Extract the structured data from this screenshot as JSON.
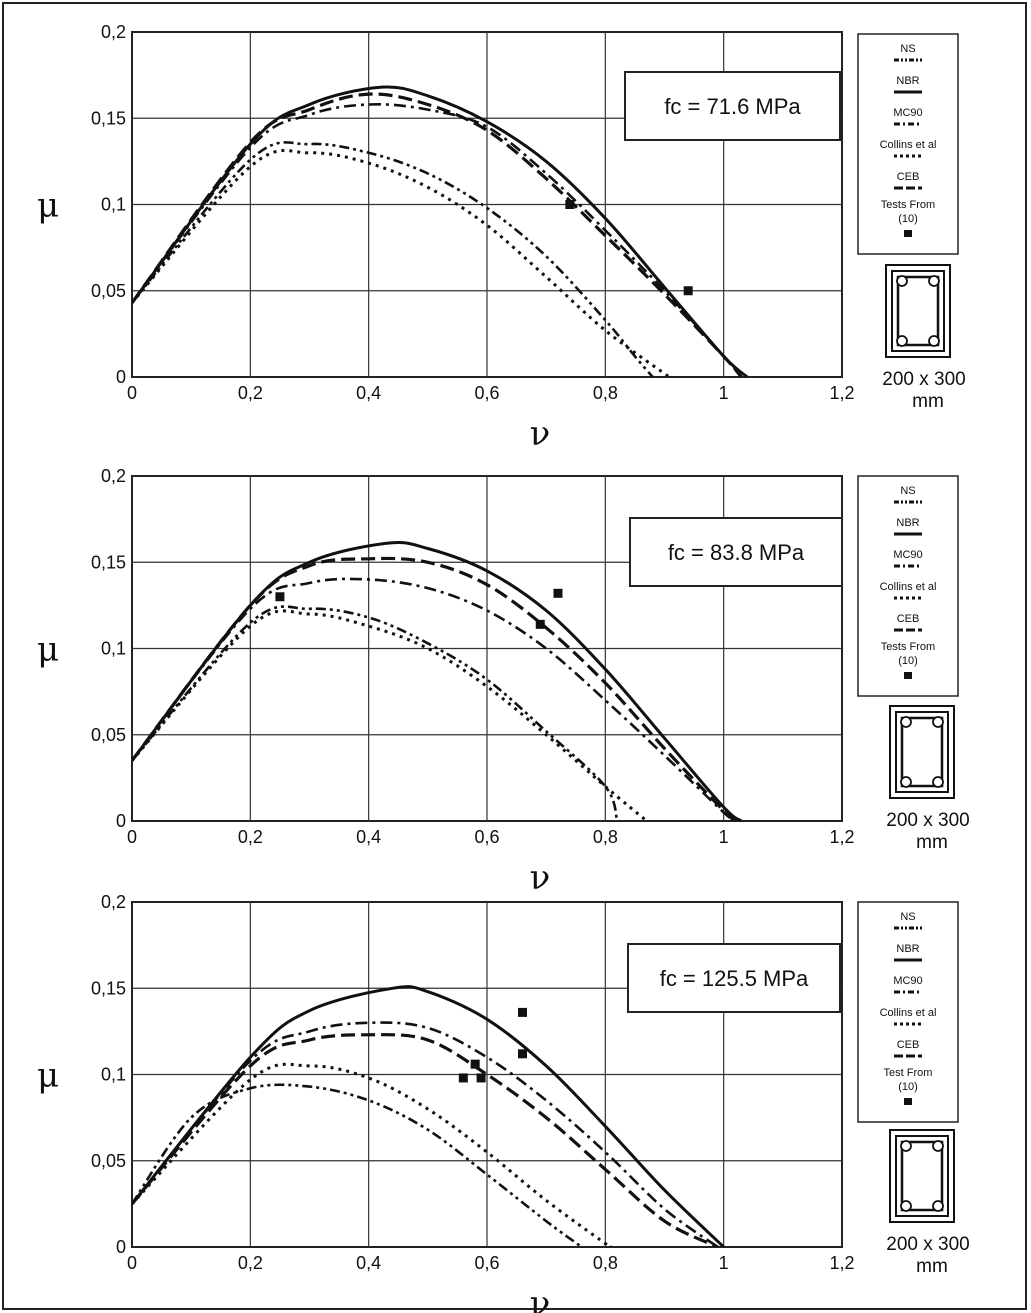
{
  "chart_data": [
    {
      "type": "line",
      "annotation": "fc = 71.6 MPa",
      "xlabel": "ν",
      "ylabel": "μ",
      "xlim": [
        0,
        1.2
      ],
      "ylim": [
        0,
        0.2
      ],
      "x_ticks": [
        "0",
        "0,2",
        "0,4",
        "0,6",
        "0,8",
        "1",
        "1,2"
      ],
      "y_ticks": [
        "0",
        "0,05",
        "0,1",
        "0,15",
        "0,2"
      ],
      "grid": true,
      "legend_placement": "right",
      "legend": [
        "NS",
        "NBR",
        "MC90",
        "Collins et al",
        "CEB",
        "Tests From",
        "(10)"
      ],
      "section_label": [
        "200 x 300",
        "mm"
      ],
      "series": [
        {
          "name": "NS",
          "style": "dash-dot-dot",
          "points": [
            [
              0,
              0.043
            ],
            [
              0.2,
              0.126
            ],
            [
              0.3,
              0.135
            ],
            [
              0.4,
              0.13
            ],
            [
              0.5,
              0.118
            ],
            [
              0.6,
              0.098
            ],
            [
              0.7,
              0.07
            ],
            [
              0.8,
              0.033
            ],
            [
              0.85,
              0.012
            ],
            [
              0.88,
              0
            ]
          ]
        },
        {
          "name": "NBR",
          "style": "solid",
          "points": [
            [
              0,
              0.043
            ],
            [
              0.2,
              0.135
            ],
            [
              0.3,
              0.158
            ],
            [
              0.42,
              0.168
            ],
            [
              0.5,
              0.163
            ],
            [
              0.6,
              0.148
            ],
            [
              0.7,
              0.125
            ],
            [
              0.8,
              0.092
            ],
            [
              0.9,
              0.052
            ],
            [
              1,
              0.012
            ],
            [
              1.04,
              0
            ]
          ]
        },
        {
          "name": "MC90",
          "style": "dash-dot",
          "points": [
            [
              0,
              0.043
            ],
            [
              0.2,
              0.133
            ],
            [
              0.3,
              0.152
            ],
            [
              0.4,
              0.158
            ],
            [
              0.5,
              0.155
            ],
            [
              0.6,
              0.145
            ],
            [
              0.7,
              0.118
            ],
            [
              0.8,
              0.085
            ],
            [
              0.9,
              0.05
            ],
            [
              1,
              0.012
            ],
            [
              1.03,
              0
            ]
          ]
        },
        {
          "name": "Collins et al",
          "style": "dotted",
          "points": [
            [
              0,
              0.043
            ],
            [
              0.2,
              0.122
            ],
            [
              0.3,
              0.13
            ],
            [
              0.4,
              0.124
            ],
            [
              0.5,
              0.11
            ],
            [
              0.6,
              0.088
            ],
            [
              0.7,
              0.058
            ],
            [
              0.8,
              0.027
            ],
            [
              0.9,
              0.002
            ],
            [
              0.91,
              0
            ]
          ]
        },
        {
          "name": "CEB",
          "style": "dashed",
          "points": [
            [
              0,
              0.043
            ],
            [
              0.2,
              0.136
            ],
            [
              0.3,
              0.155
            ],
            [
              0.4,
              0.164
            ],
            [
              0.5,
              0.158
            ],
            [
              0.6,
              0.143
            ],
            [
              0.7,
              0.115
            ],
            [
              0.8,
              0.082
            ],
            [
              0.9,
              0.048
            ],
            [
              1,
              0.012
            ],
            [
              1.03,
              0
            ]
          ]
        }
      ],
      "tests": [
        [
          0.74,
          0.1
        ],
        [
          0.94,
          0.05
        ]
      ]
    },
    {
      "type": "line",
      "annotation": "fc = 83.8 MPa",
      "xlabel": "ν",
      "ylabel": "μ",
      "xlim": [
        0,
        1.2
      ],
      "ylim": [
        0,
        0.2
      ],
      "x_ticks": [
        "0",
        "0,2",
        "0,4",
        "0,6",
        "0,8",
        "1",
        "1,2"
      ],
      "y_ticks": [
        "0",
        "0,05",
        "0,1",
        "0,15",
        "0,2"
      ],
      "grid": true,
      "legend_placement": "right",
      "legend": [
        "NS",
        "NBR",
        "MC90",
        "Collins et al",
        "CEB",
        "Tests From",
        "(10)"
      ],
      "section_label": [
        "200 x 300",
        "mm"
      ],
      "series": [
        {
          "name": "NS",
          "style": "dash-dot-dot",
          "points": [
            [
              0,
              0.035
            ],
            [
              0.2,
              0.115
            ],
            [
              0.3,
              0.123
            ],
            [
              0.4,
              0.118
            ],
            [
              0.5,
              0.103
            ],
            [
              0.6,
              0.082
            ],
            [
              0.7,
              0.052
            ],
            [
              0.8,
              0.02
            ],
            [
              0.82,
              0
            ]
          ]
        },
        {
          "name": "NBR",
          "style": "solid",
          "points": [
            [
              0,
              0.035
            ],
            [
              0.2,
              0.125
            ],
            [
              0.3,
              0.15
            ],
            [
              0.43,
              0.161
            ],
            [
              0.5,
              0.158
            ],
            [
              0.6,
              0.145
            ],
            [
              0.7,
              0.122
            ],
            [
              0.8,
              0.088
            ],
            [
              0.9,
              0.048
            ],
            [
              1,
              0.008
            ],
            [
              1.03,
              0
            ]
          ]
        },
        {
          "name": "MC90",
          "style": "dash-dot",
          "points": [
            [
              0,
              0.035
            ],
            [
              0.2,
              0.123
            ],
            [
              0.3,
              0.138
            ],
            [
              0.4,
              0.14
            ],
            [
              0.5,
              0.135
            ],
            [
              0.6,
              0.122
            ],
            [
              0.7,
              0.1
            ],
            [
              0.8,
              0.07
            ],
            [
              0.9,
              0.038
            ],
            [
              1,
              0.005
            ],
            [
              1.02,
              0
            ]
          ]
        },
        {
          "name": "Collins et al",
          "style": "dotted",
          "points": [
            [
              0,
              0.035
            ],
            [
              0.2,
              0.113
            ],
            [
              0.3,
              0.12
            ],
            [
              0.4,
              0.113
            ],
            [
              0.5,
              0.1
            ],
            [
              0.6,
              0.078
            ],
            [
              0.7,
              0.05
            ],
            [
              0.8,
              0.02
            ],
            [
              0.87,
              0
            ]
          ]
        },
        {
          "name": "CEB",
          "style": "dashed",
          "points": [
            [
              0,
              0.035
            ],
            [
              0.2,
              0.125
            ],
            [
              0.3,
              0.148
            ],
            [
              0.4,
              0.152
            ],
            [
              0.5,
              0.15
            ],
            [
              0.6,
              0.137
            ],
            [
              0.7,
              0.112
            ],
            [
              0.8,
              0.08
            ],
            [
              0.9,
              0.042
            ],
            [
              1,
              0.006
            ],
            [
              1.02,
              0
            ]
          ]
        }
      ],
      "tests": [
        [
          0.25,
          0.13
        ],
        [
          0.69,
          0.114
        ],
        [
          0.72,
          0.132
        ]
      ]
    },
    {
      "type": "line",
      "annotation": "fc = 125.5 MPa",
      "xlabel": "ν",
      "ylabel": "μ",
      "xlim": [
        0,
        1.2
      ],
      "ylim": [
        0,
        0.2
      ],
      "x_ticks": [
        "0",
        "0,2",
        "0,4",
        "0,6",
        "0,8",
        "1",
        "1,2"
      ],
      "y_ticks": [
        "0",
        "0,05",
        "0,1",
        "0,15",
        "0,2"
      ],
      "grid": true,
      "legend_placement": "right",
      "legend": [
        "NS",
        "NBR",
        "MC90",
        "Collins et al",
        "CEB",
        "Test From",
        "(10)"
      ],
      "section_label": [
        "200 x 300",
        "mm"
      ],
      "series": [
        {
          "name": "NS",
          "style": "dash-dot-dot",
          "points": [
            [
              0,
              0.025
            ],
            [
              0.1,
              0.075
            ],
            [
              0.2,
              0.092
            ],
            [
              0.3,
              0.093
            ],
            [
              0.4,
              0.085
            ],
            [
              0.5,
              0.068
            ],
            [
              0.6,
              0.042
            ],
            [
              0.7,
              0.015
            ],
            [
              0.76,
              0
            ]
          ]
        },
        {
          "name": "NBR",
          "style": "solid",
          "points": [
            [
              0,
              0.025
            ],
            [
              0.2,
              0.11
            ],
            [
              0.3,
              0.137
            ],
            [
              0.44,
              0.15
            ],
            [
              0.5,
              0.148
            ],
            [
              0.6,
              0.132
            ],
            [
              0.7,
              0.105
            ],
            [
              0.8,
              0.07
            ],
            [
              0.9,
              0.033
            ],
            [
              1,
              0
            ]
          ]
        },
        {
          "name": "MC90",
          "style": "dash-dot",
          "points": [
            [
              0,
              0.025
            ],
            [
              0.2,
              0.108
            ],
            [
              0.3,
              0.125
            ],
            [
              0.4,
              0.13
            ],
            [
              0.5,
              0.127
            ],
            [
              0.6,
              0.11
            ],
            [
              0.7,
              0.085
            ],
            [
              0.8,
              0.055
            ],
            [
              0.9,
              0.022
            ],
            [
              0.99,
              0
            ]
          ]
        },
        {
          "name": "Collins et al",
          "style": "dotted",
          "points": [
            [
              0,
              0.025
            ],
            [
              0.2,
              0.097
            ],
            [
              0.3,
              0.105
            ],
            [
              0.4,
              0.098
            ],
            [
              0.5,
              0.08
            ],
            [
              0.6,
              0.055
            ],
            [
              0.7,
              0.027
            ],
            [
              0.8,
              0.002
            ],
            [
              0.81,
              0
            ]
          ]
        },
        {
          "name": "CEB",
          "style": "dashed",
          "points": [
            [
              0,
              0.025
            ],
            [
              0.2,
              0.105
            ],
            [
              0.3,
              0.12
            ],
            [
              0.4,
              0.123
            ],
            [
              0.5,
              0.12
            ],
            [
              0.6,
              0.1
            ],
            [
              0.7,
              0.075
            ],
            [
              0.8,
              0.045
            ],
            [
              0.9,
              0.015
            ],
            [
              0.99,
              0
            ]
          ]
        }
      ],
      "tests": [
        [
          0.56,
          0.098
        ],
        [
          0.58,
          0.106
        ],
        [
          0.59,
          0.098
        ],
        [
          0.66,
          0.112
        ],
        [
          0.66,
          0.136
        ]
      ]
    }
  ]
}
